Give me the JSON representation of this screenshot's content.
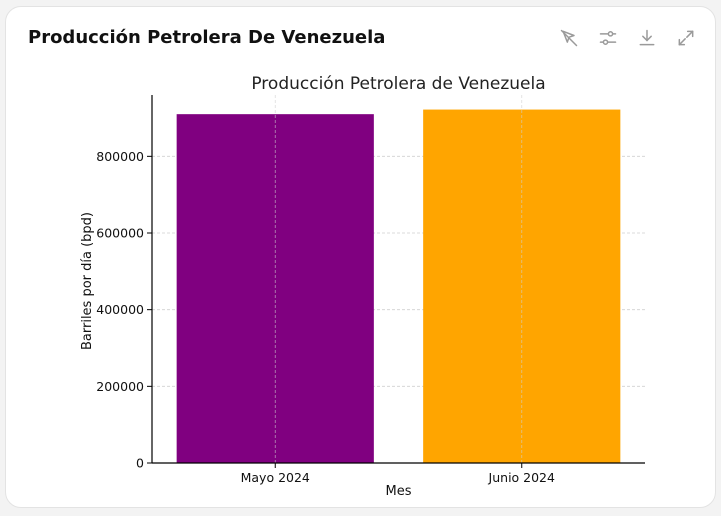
{
  "card": {
    "title": "Producción Petrolera De Venezuela"
  },
  "toolbar": {
    "icons": [
      "pointer-off-icon",
      "sliders-icon",
      "download-icon",
      "expand-icon"
    ],
    "color": "#9a9a9a"
  },
  "chart_data": {
    "type": "bar",
    "title": "Producción Petrolera de Venezuela",
    "xlabel": "Mes",
    "ylabel": "Barriles por día (bpd)",
    "categories": [
      "Mayo 2024",
      "Junio 2024"
    ],
    "values": [
      910000,
      922000
    ],
    "colors": [
      "#800080",
      "#FFA500"
    ],
    "ylim": [
      0,
      960000
    ],
    "yticks": [
      0,
      200000,
      400000,
      600000,
      800000
    ],
    "ytick_labels": [
      "0",
      "200000",
      "400000",
      "600000",
      "800000"
    ],
    "grid": true,
    "legend": false
  }
}
